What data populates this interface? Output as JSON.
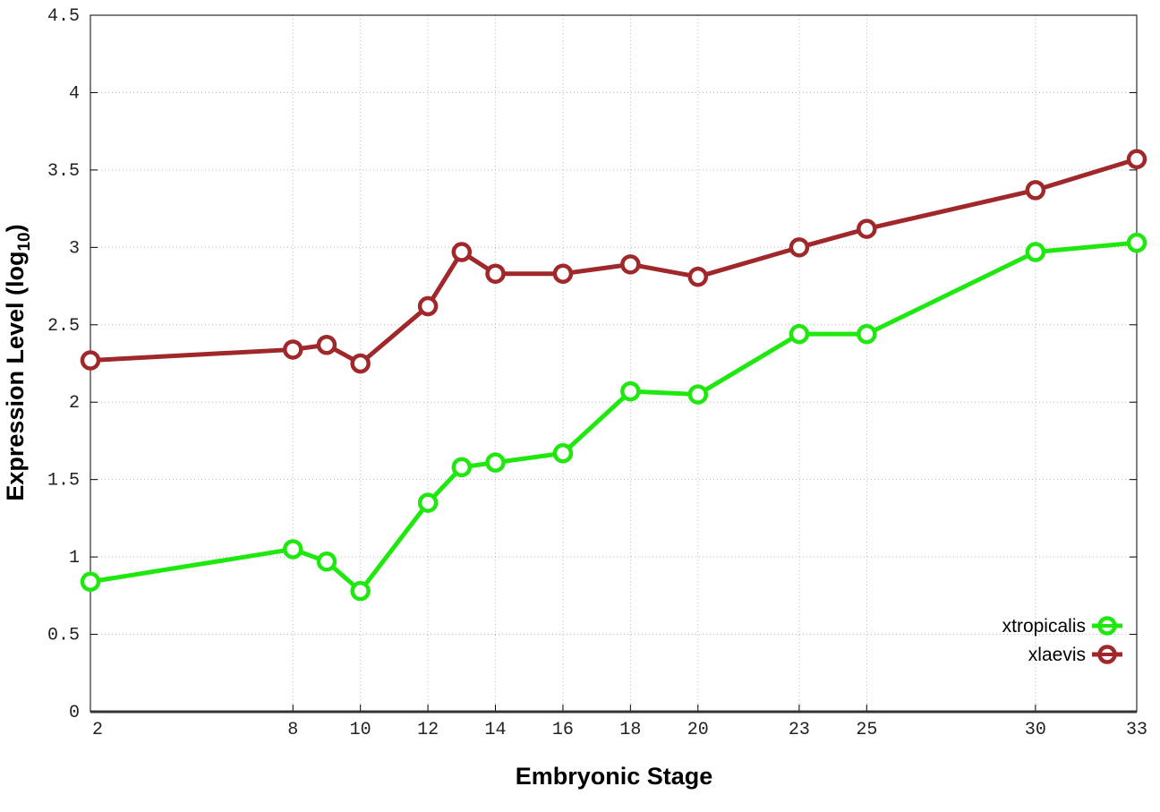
{
  "chart_data": {
    "type": "line",
    "title": "",
    "xlabel": "Embryonic Stage",
    "ylabel_main": "Expression Level (log",
    "ylabel_sub": "10",
    "ylabel_close": ")",
    "xlim": [
      2,
      33
    ],
    "ylim": [
      0,
      4.5
    ],
    "x_ticks": [
      2,
      8,
      10,
      12,
      14,
      16,
      18,
      20,
      23,
      25,
      30,
      33
    ],
    "y_ticks": [
      "0",
      "0.5",
      "1",
      "1.5",
      "2",
      "2.5",
      "3",
      "3.5",
      "4",
      "4.5"
    ],
    "grid": true,
    "legend_position": "bottom-right",
    "x": [
      2,
      8,
      9,
      10,
      12,
      13,
      14,
      16,
      18,
      20,
      23,
      25,
      30,
      33
    ],
    "series": [
      {
        "name": "xtropicalis",
        "color": "#1fe80f",
        "values": [
          0.84,
          1.05,
          0.97,
          0.78,
          1.35,
          1.58,
          1.61,
          1.67,
          2.07,
          2.05,
          2.44,
          2.44,
          2.97,
          3.03
        ]
      },
      {
        "name": "xlaevis",
        "color": "#a0282a",
        "values": [
          2.27,
          2.34,
          2.37,
          2.25,
          2.62,
          2.97,
          2.83,
          2.83,
          2.89,
          2.81,
          3.0,
          3.12,
          3.37,
          3.57
        ]
      }
    ]
  }
}
